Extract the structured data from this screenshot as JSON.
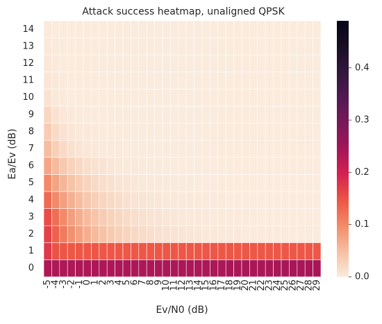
{
  "chart_data": {
    "type": "heatmap",
    "title": "Attack success heatmap, unaligned QPSK",
    "xlabel": "Ev/N0 (dB)",
    "ylabel": "Ea/Ev (dB)",
    "x_categories": [
      "-5",
      "-4",
      "-3",
      "-2",
      "-1",
      "0",
      "1",
      "2",
      "3",
      "4",
      "5",
      "6",
      "7",
      "8",
      "9",
      "10",
      "11",
      "12",
      "13",
      "14",
      "15",
      "16",
      "17",
      "18",
      "19",
      "20",
      "21",
      "22",
      "23",
      "24",
      "25",
      "26",
      "27",
      "28",
      "29"
    ],
    "y_categories": [
      "0",
      "1",
      "2",
      "3",
      "4",
      "5",
      "6",
      "7",
      "8",
      "9",
      "10",
      "11",
      "12",
      "13",
      "14"
    ],
    "colorbar": {
      "min": 0.0,
      "max": 0.49,
      "ticks": [
        "0.0",
        "0.1",
        "0.2",
        "0.3",
        "0.4"
      ]
    },
    "colormap": "rocket_r",
    "grid": true,
    "legend": "none",
    "cell_border_color": "#ffffff",
    "row_profiles": [
      {
        "y": "0",
        "start": 0.235,
        "end": 0.24,
        "decay": 0
      },
      {
        "y": "1",
        "start": 0.175,
        "end": 0.145,
        "decay": 1.8
      },
      {
        "y": "2",
        "start": 0.165,
        "end": 0.0,
        "decay": 0.19
      },
      {
        "y": "3",
        "start": 0.155,
        "end": 0.0,
        "decay": 0.22
      },
      {
        "y": "4",
        "start": 0.128,
        "end": 0.0,
        "decay": 0.24
      },
      {
        "y": "5",
        "start": 0.1,
        "end": 0.0,
        "decay": 0.28
      },
      {
        "y": "6",
        "start": 0.072,
        "end": 0.0,
        "decay": 0.33
      },
      {
        "y": "7",
        "start": 0.05,
        "end": 0.0,
        "decay": 0.5
      },
      {
        "y": "8",
        "start": 0.034,
        "end": 0.0,
        "decay": 0.6
      },
      {
        "y": "9",
        "start": 0.022,
        "end": 0.0,
        "decay": 0.8
      },
      {
        "y": "10",
        "start": 0.01,
        "end": 0.0,
        "decay": 1.0
      },
      {
        "y": "11",
        "start": 0.006,
        "end": 0.0,
        "decay": 1.0
      },
      {
        "y": "12",
        "start": 0.004,
        "end": 0.0,
        "decay": 1.0
      },
      {
        "y": "13",
        "start": 0.002,
        "end": 0.0,
        "decay": 1.0
      },
      {
        "y": "14",
        "start": 0.001,
        "end": 0.0,
        "decay": 1.0
      }
    ]
  }
}
